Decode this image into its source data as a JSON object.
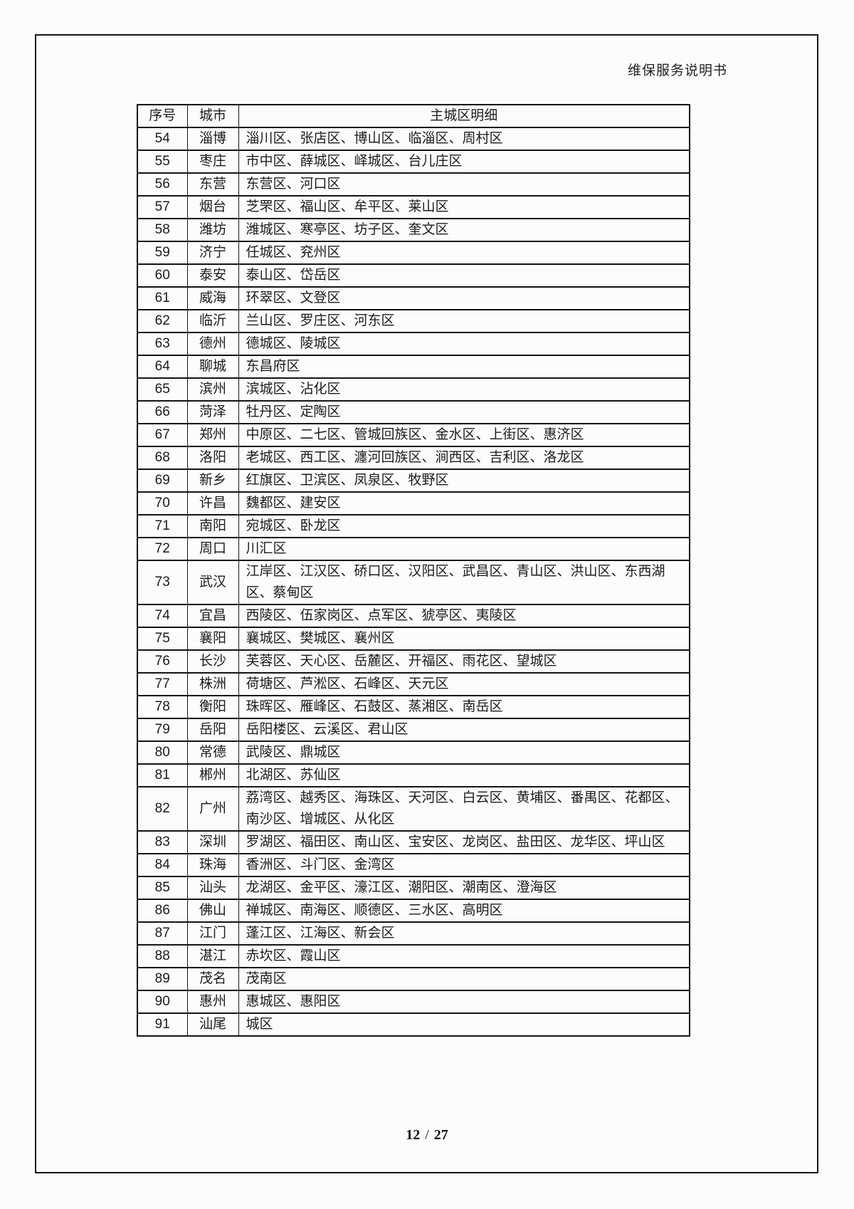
{
  "document": {
    "header_title": "维保服务说明书",
    "footer": {
      "current_page": "12",
      "separator": "/",
      "total_pages": "27"
    }
  },
  "table": {
    "columns": [
      {
        "key": "no",
        "label": "序号"
      },
      {
        "key": "city",
        "label": "城市"
      },
      {
        "key": "districts",
        "label": "主城区明细"
      }
    ],
    "rows": [
      {
        "no": "54",
        "city": "淄博",
        "districts": "淄川区、张店区、博山区、临淄区、周村区"
      },
      {
        "no": "55",
        "city": "枣庄",
        "districts": "市中区、薛城区、峄城区、台儿庄区"
      },
      {
        "no": "56",
        "city": "东营",
        "districts": "东营区、河口区"
      },
      {
        "no": "57",
        "city": "烟台",
        "districts": "芝罘区、福山区、牟平区、莱山区"
      },
      {
        "no": "58",
        "city": "潍坊",
        "districts": "潍城区、寒亭区、坊子区、奎文区"
      },
      {
        "no": "59",
        "city": "济宁",
        "districts": "任城区、兖州区"
      },
      {
        "no": "60",
        "city": "泰安",
        "districts": "泰山区、岱岳区"
      },
      {
        "no": "61",
        "city": "威海",
        "districts": "环翠区、文登区"
      },
      {
        "no": "62",
        "city": "临沂",
        "districts": "兰山区、罗庄区、河东区"
      },
      {
        "no": "63",
        "city": "德州",
        "districts": "德城区、陵城区"
      },
      {
        "no": "64",
        "city": "聊城",
        "districts": "东昌府区"
      },
      {
        "no": "65",
        "city": "滨州",
        "districts": "滨城区、沾化区"
      },
      {
        "no": "66",
        "city": "菏泽",
        "districts": "牡丹区、定陶区"
      },
      {
        "no": "67",
        "city": "郑州",
        "districts": "中原区、二七区、管城回族区、金水区、上街区、惠济区"
      },
      {
        "no": "68",
        "city": "洛阳",
        "districts": "老城区、西工区、瀍河回族区、涧西区、吉利区、洛龙区"
      },
      {
        "no": "69",
        "city": "新乡",
        "districts": "红旗区、卫滨区、凤泉区、牧野区"
      },
      {
        "no": "70",
        "city": "许昌",
        "districts": "魏都区、建安区"
      },
      {
        "no": "71",
        "city": "南阳",
        "districts": "宛城区、卧龙区"
      },
      {
        "no": "72",
        "city": "周口",
        "districts": "川汇区"
      },
      {
        "no": "73",
        "city": "武汉",
        "districts": "江岸区、江汉区、硚口区、汉阳区、武昌区、青山区、洪山区、东西湖区、蔡甸区"
      },
      {
        "no": "74",
        "city": "宜昌",
        "districts": "西陵区、伍家岗区、点军区、猇亭区、夷陵区"
      },
      {
        "no": "75",
        "city": "襄阳",
        "districts": "襄城区、樊城区、襄州区"
      },
      {
        "no": "76",
        "city": "长沙",
        "districts": "芙蓉区、天心区、岳麓区、开福区、雨花区、望城区"
      },
      {
        "no": "77",
        "city": "株洲",
        "districts": "荷塘区、芦淞区、石峰区、天元区"
      },
      {
        "no": "78",
        "city": "衡阳",
        "districts": "珠晖区、雁峰区、石鼓区、蒸湘区、南岳区"
      },
      {
        "no": "79",
        "city": "岳阳",
        "districts": "岳阳楼区、云溪区、君山区"
      },
      {
        "no": "80",
        "city": "常德",
        "districts": "武陵区、鼎城区"
      },
      {
        "no": "81",
        "city": "郴州",
        "districts": "北湖区、苏仙区"
      },
      {
        "no": "82",
        "city": "广州",
        "districts": "荔湾区、越秀区、海珠区、天河区、白云区、黄埔区、番禺区、花都区、南沙区、增城区、从化区"
      },
      {
        "no": "83",
        "city": "深圳",
        "districts": "罗湖区、福田区、南山区、宝安区、龙岗区、盐田区、龙华区、坪山区"
      },
      {
        "no": "84",
        "city": "珠海",
        "districts": "香洲区、斗门区、金湾区"
      },
      {
        "no": "85",
        "city": "汕头",
        "districts": "龙湖区、金平区、濠江区、潮阳区、潮南区、澄海区"
      },
      {
        "no": "86",
        "city": "佛山",
        "districts": "禅城区、南海区、顺德区、三水区、高明区"
      },
      {
        "no": "87",
        "city": "江门",
        "districts": "蓬江区、江海区、新会区"
      },
      {
        "no": "88",
        "city": "湛江",
        "districts": "赤坎区、霞山区"
      },
      {
        "no": "89",
        "city": "茂名",
        "districts": "茂南区"
      },
      {
        "no": "90",
        "city": "惠州",
        "districts": "惠城区、惠阳区"
      },
      {
        "no": "91",
        "city": "汕尾",
        "districts": "城区"
      }
    ]
  },
  "colors": {
    "text": "#1a1a1a",
    "border": "#141414",
    "page_background": "#fcfcfa"
  }
}
